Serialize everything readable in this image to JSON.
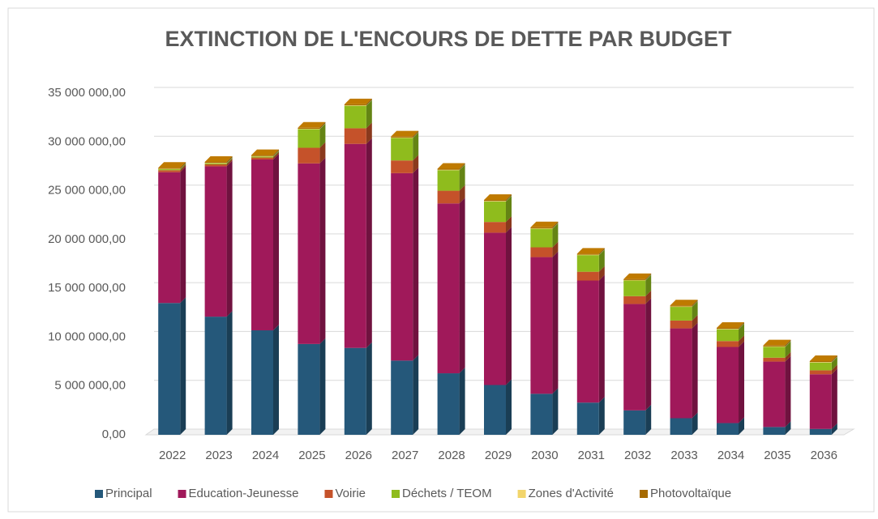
{
  "chart_data": {
    "type": "bar3d_stacked",
    "title": "EXTINCTION DE L'ENCOURS DE DETTE PAR BUDGET",
    "categories": [
      "2022",
      "2023",
      "2024",
      "2025",
      "2026",
      "2027",
      "2028",
      "2029",
      "2030",
      "2031",
      "2032",
      "2033",
      "2034",
      "2035",
      "2036"
    ],
    "series": [
      {
        "name": "Principal",
        "color": "#25587a",
        "values": [
          13500000,
          12100000,
          10700000,
          9300000,
          8900000,
          7600000,
          6300000,
          5100000,
          4200000,
          3300000,
          2500000,
          1700000,
          1200000,
          800000,
          600000
        ]
      },
      {
        "name": "Education-Jeunesse",
        "color": "#a0195a",
        "values": [
          13400000,
          15400000,
          17500000,
          18500000,
          20900000,
          19200000,
          17400000,
          15600000,
          14000000,
          12500000,
          10900000,
          9200000,
          7800000,
          6700000,
          5600000
        ]
      },
      {
        "name": "Voirie",
        "color": "#c5522a",
        "values": [
          200000,
          200000,
          200000,
          1600000,
          1600000,
          1300000,
          1300000,
          1100000,
          1000000,
          900000,
          800000,
          800000,
          600000,
          400000,
          400000
        ]
      },
      {
        "name": "Déchets / TEOM",
        "color": "#8fbc1d",
        "values": [
          100000,
          100000,
          100000,
          1900000,
          2300000,
          2300000,
          2100000,
          2100000,
          1900000,
          1700000,
          1600000,
          1400000,
          1200000,
          1100000,
          800000
        ]
      },
      {
        "name": "Zones d'Activité",
        "color": "#f2d56b",
        "values": [
          50000,
          50000,
          50000,
          50000,
          50000,
          50000,
          50000,
          50000,
          50000,
          50000,
          50000,
          50000,
          50000,
          50000,
          50000
        ]
      },
      {
        "name": "Photovoltaïque",
        "color": "#a66a00",
        "values": [
          100000,
          100000,
          100000,
          100000,
          100000,
          100000,
          100000,
          100000,
          100000,
          100000,
          100000,
          100000,
          100000,
          100000,
          100000
        ]
      }
    ],
    "ylim": [
      0,
      35000000
    ],
    "yticks": [
      {
        "value": 0,
        "label": "0,00"
      },
      {
        "value": 5000000,
        "label": "5 000 000,00"
      },
      {
        "value": 10000000,
        "label": "10 000 000,00"
      },
      {
        "value": 15000000,
        "label": "15 000 000,00"
      },
      {
        "value": 20000000,
        "label": "20 000 000,00"
      },
      {
        "value": 25000000,
        "label": "25 000 000,00"
      },
      {
        "value": 30000000,
        "label": "30 000 000,00"
      },
      {
        "value": 35000000,
        "label": "35 000 000,00"
      }
    ],
    "grid": true,
    "legend": "bottom"
  }
}
